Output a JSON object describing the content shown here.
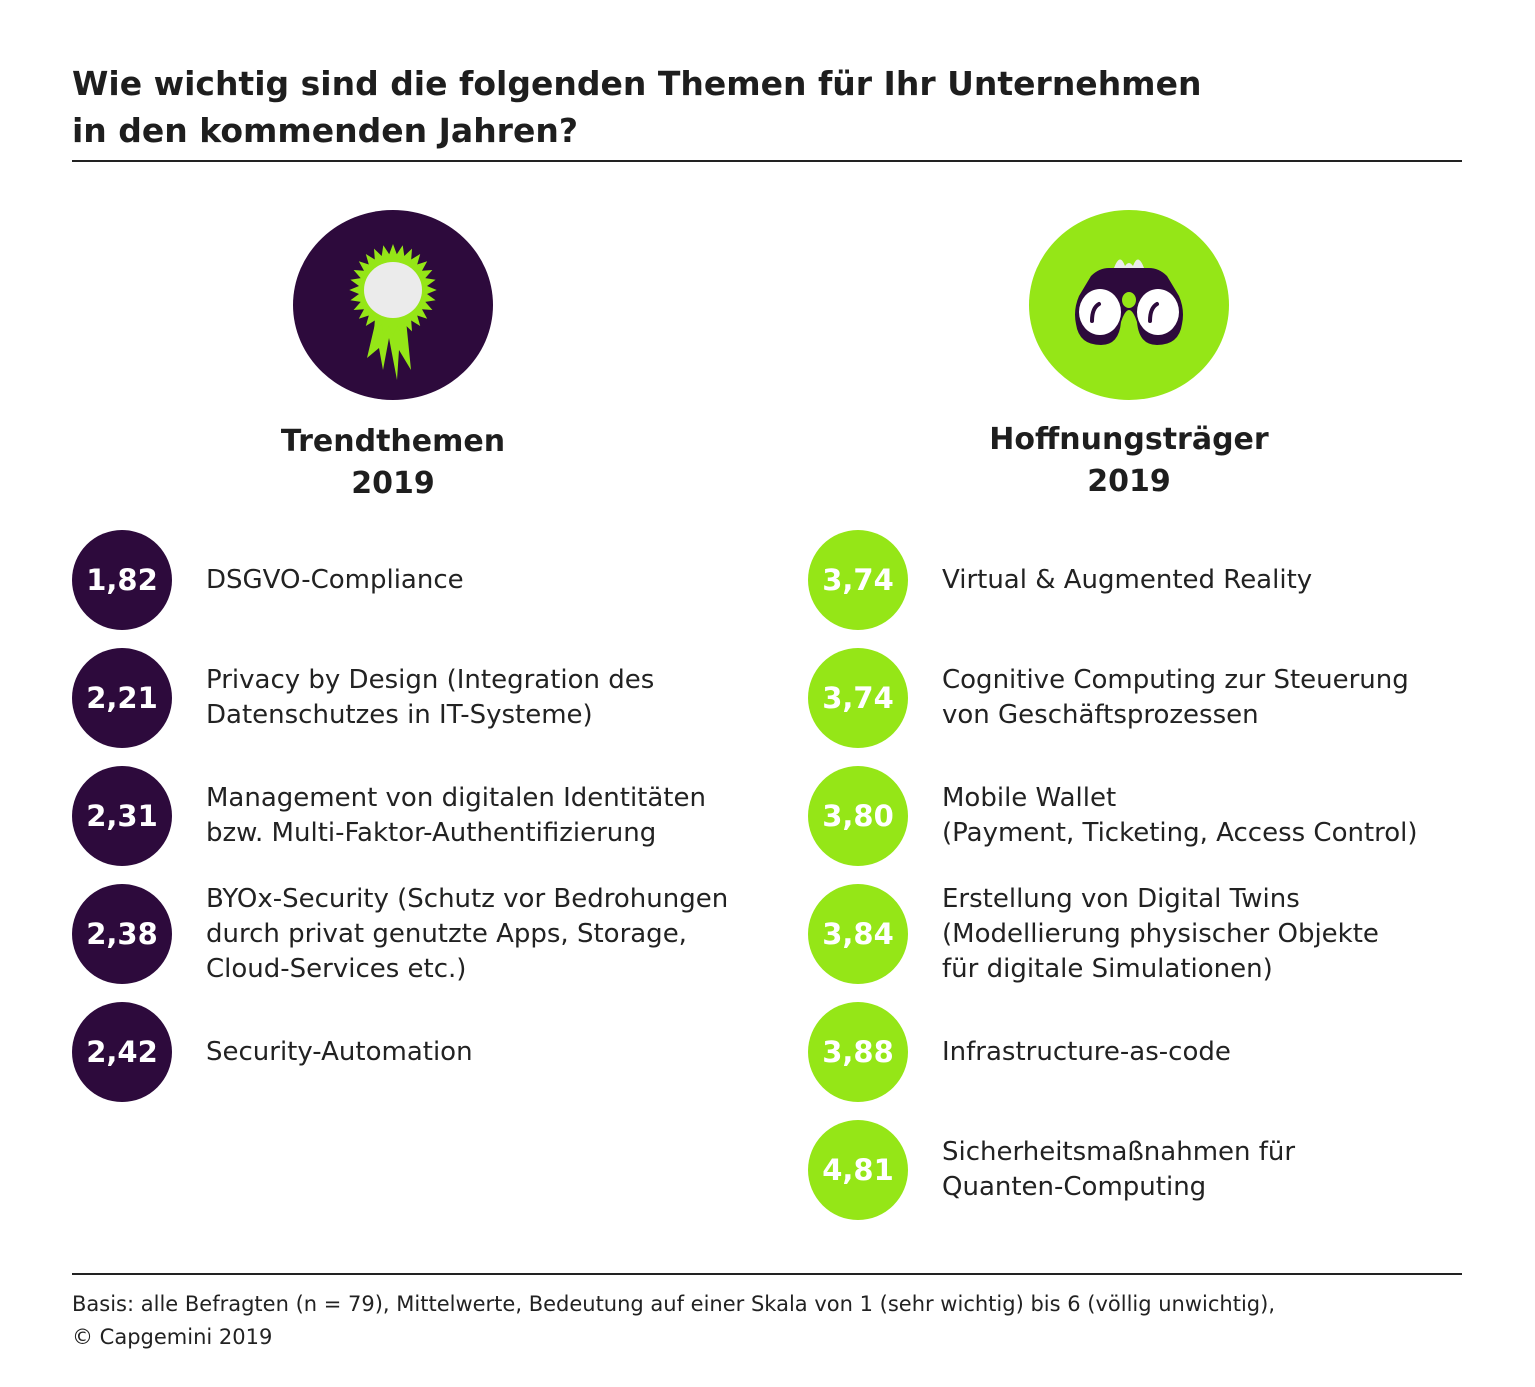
{
  "title_line1": "Wie wichtig sind die folgenden Themen für Ihr Unternehmen",
  "title_line2": "in den kommenden Jahren?",
  "colors": {
    "purple": "#2d0a3c",
    "green": "#95e617",
    "light": "#ebebeb"
  },
  "chart_data": {
    "type": "table",
    "scale_note": "1 (sehr wichtig) bis 6 (völlig unwichtig)",
    "groups": [
      {
        "name": "Trendthemen\n2019",
        "icon": "award-rosette-icon",
        "color": "#2d0a3c",
        "items": [
          {
            "value": "1,82",
            "label": "DSGVO-Compliance"
          },
          {
            "value": "2,21",
            "label": "Privacy by Design (Integration des\nDatenschutzes in IT-Systeme)"
          },
          {
            "value": "2,31",
            "label": "Management von digitalen Identitäten\nbzw. Multi-Faktor-Authentifizierung"
          },
          {
            "value": "2,38",
            "label": "BYOx-Security (Schutz vor Bedrohungen\ndurch privat genutzte Apps, Storage,\nCloud-Services etc.)"
          },
          {
            "value": "2,42",
            "label": "Security-Automation"
          }
        ]
      },
      {
        "name": "Hoffnungsträger\n2019",
        "icon": "binoculars-icon",
        "color": "#95e617",
        "items": [
          {
            "value": "3,74",
            "label": "Virtual & Augmented Reality"
          },
          {
            "value": "3,74",
            "label": "Cognitive Computing zur Steuerung\nvon Geschäftsprozessen"
          },
          {
            "value": "3,80",
            "label": "Mobile Wallet\n(Payment, Ticketing, Access Control)"
          },
          {
            "value": "3,84",
            "label": "Erstellung von Digital Twins\n(Modellierung physischer Objekte\nfür digitale Simulationen)"
          },
          {
            "value": "3,88",
            "label": "Infrastructure-as-code"
          },
          {
            "value": "4,81",
            "label": "Sicherheitsmaßnahmen für\nQuanten-Computing"
          }
        ]
      }
    ]
  },
  "footer_line1": "Basis: alle Befragten (n = 79), Mittelwerte, Bedeutung auf einer Skala von 1 (sehr wichtig) bis 6 (völlig unwichtig),",
  "footer_line2": "© Capgemini 2019"
}
